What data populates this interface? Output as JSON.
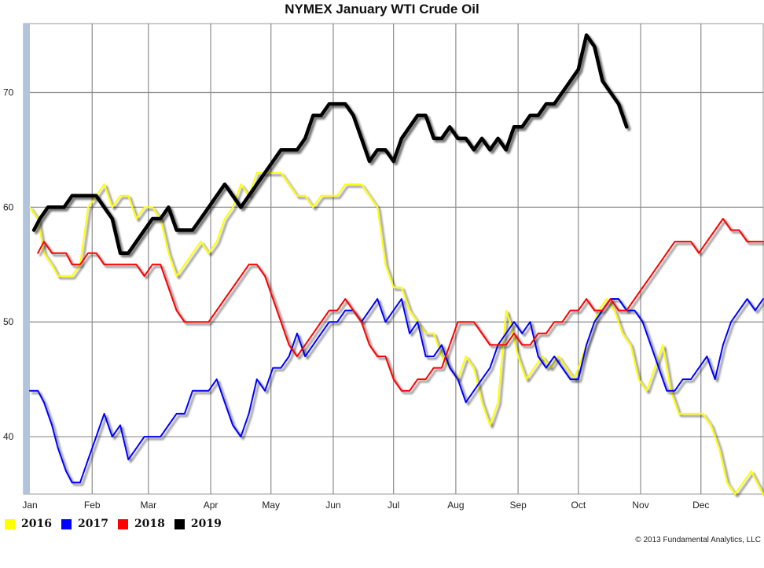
{
  "chart_data": {
    "type": "line",
    "title": "NYMEX January WTI Crude Oil",
    "xlabel": "",
    "ylabel": "",
    "xlim": [
      1,
      366
    ],
    "ylim": [
      35,
      76
    ],
    "yticks": [
      40,
      50,
      60,
      70
    ],
    "x_tick_labels": [
      "Jan",
      "Feb",
      "Mar",
      "Apr",
      "May",
      "Jun",
      "Jul",
      "Aug",
      "Sep",
      "Oct",
      "Nov",
      "Dec"
    ],
    "x_tick_days": [
      1,
      32,
      60,
      91,
      121,
      152,
      182,
      213,
      244,
      274,
      305,
      335
    ],
    "grid": true,
    "legend_position": "bottom-left",
    "series": [
      {
        "name": "2016",
        "color": "#ffff00",
        "x": [
          1,
          5,
          8,
          12,
          15,
          19,
          22,
          26,
          30,
          34,
          38,
          42,
          46,
          50,
          54,
          58,
          62,
          66,
          70,
          74,
          78,
          82,
          86,
          90,
          94,
          98,
          102,
          106,
          110,
          114,
          118,
          122,
          126,
          130,
          134,
          138,
          142,
          146,
          150,
          154,
          158,
          162,
          166,
          170,
          174,
          178,
          182,
          186,
          190,
          194,
          198,
          202,
          206,
          210,
          214,
          218,
          222,
          226,
          230,
          234,
          238,
          240,
          244,
          248,
          252,
          256,
          260,
          264,
          268,
          272,
          276,
          280,
          284,
          288,
          292,
          296,
          300,
          304,
          308,
          312,
          316,
          320,
          324,
          328,
          332,
          336,
          340,
          344,
          348,
          352,
          356,
          360,
          366
        ],
        "y": [
          60,
          59,
          56,
          55,
          54,
          54,
          54,
          55,
          60,
          61,
          62,
          60,
          61,
          61,
          59,
          60,
          60,
          59,
          56,
          54,
          55,
          56,
          57,
          56,
          57,
          59,
          60,
          62,
          61,
          63,
          63,
          63,
          63,
          62,
          61,
          61,
          60,
          61,
          61,
          61,
          62,
          62,
          62,
          61,
          60,
          55,
          53,
          53,
          51,
          50,
          49,
          49,
          47,
          46,
          45,
          47,
          46,
          43,
          41,
          43,
          51,
          50,
          47,
          45,
          46,
          47,
          46,
          47,
          46,
          45,
          47,
          49,
          51,
          52,
          51,
          49,
          48,
          45,
          44,
          46,
          48,
          44,
          42,
          42,
          42,
          42,
          41,
          39,
          36,
          35,
          36,
          37,
          35
        ]
      },
      {
        "name": "2017",
        "color": "#0000ff",
        "x": [
          1,
          5,
          8,
          12,
          15,
          19,
          22,
          26,
          30,
          34,
          38,
          42,
          46,
          50,
          54,
          58,
          62,
          66,
          70,
          74,
          78,
          82,
          86,
          90,
          94,
          98,
          102,
          106,
          110,
          114,
          118,
          122,
          126,
          130,
          134,
          138,
          142,
          146,
          150,
          154,
          158,
          162,
          166,
          170,
          174,
          178,
          182,
          186,
          190,
          194,
          198,
          202,
          206,
          210,
          214,
          218,
          222,
          226,
          230,
          234,
          238,
          242,
          246,
          250,
          254,
          258,
          262,
          266,
          270,
          274,
          278,
          282,
          286,
          290,
          294,
          298,
          302,
          306,
          310,
          314,
          318,
          322,
          326,
          330,
          334,
          338,
          342,
          346,
          350,
          354,
          358,
          362,
          366
        ],
        "y": [
          44,
          44,
          43,
          41,
          39,
          37,
          36,
          36,
          38,
          40,
          42,
          40,
          41,
          38,
          39,
          40,
          40,
          40,
          41,
          42,
          42,
          44,
          44,
          44,
          45,
          43,
          41,
          40,
          42,
          45,
          44,
          46,
          46,
          47,
          49,
          47,
          48,
          49,
          50,
          50,
          51,
          51,
          50,
          51,
          52,
          50,
          51,
          52,
          49,
          50,
          47,
          47,
          48,
          46,
          45,
          43,
          44,
          45,
          46,
          48,
          49,
          50,
          49,
          50,
          47,
          46,
          47,
          46,
          45,
          45,
          48,
          50,
          51,
          52,
          52,
          51,
          51,
          50,
          48,
          46,
          44,
          44,
          45,
          45,
          46,
          47,
          45,
          48,
          50,
          51,
          52,
          51,
          52
        ]
      },
      {
        "name": "2018",
        "color": "#ff0000",
        "x": [
          5,
          8,
          12,
          15,
          19,
          22,
          26,
          30,
          34,
          38,
          42,
          46,
          50,
          54,
          58,
          62,
          66,
          70,
          74,
          78,
          82,
          86,
          90,
          94,
          98,
          102,
          106,
          110,
          114,
          118,
          122,
          126,
          130,
          134,
          138,
          142,
          146,
          150,
          154,
          158,
          162,
          166,
          170,
          174,
          178,
          182,
          186,
          190,
          194,
          198,
          202,
          206,
          210,
          214,
          218,
          222,
          226,
          230,
          234,
          238,
          242,
          246,
          250,
          254,
          258,
          262,
          266,
          270,
          274,
          278,
          282,
          286,
          290,
          294,
          298,
          302,
          306,
          310,
          314,
          318,
          322,
          326,
          330,
          334,
          338,
          342,
          346,
          350,
          354,
          358,
          362,
          366
        ],
        "y": [
          56,
          57,
          56,
          56,
          56,
          55,
          55,
          56,
          56,
          55,
          55,
          55,
          55,
          55,
          54,
          55,
          55,
          53,
          51,
          50,
          50,
          50,
          50,
          51,
          52,
          53,
          54,
          55,
          55,
          54,
          52,
          50,
          48,
          47,
          48,
          49,
          50,
          51,
          51,
          52,
          51,
          50,
          48,
          47,
          47,
          45,
          44,
          44,
          45,
          45,
          46,
          46,
          48,
          50,
          50,
          50,
          49,
          48,
          48,
          48,
          49,
          48,
          48,
          49,
          49,
          50,
          50,
          51,
          51,
          52,
          51,
          51,
          52,
          51,
          51,
          52,
          53,
          54,
          55,
          56,
          57,
          57,
          57,
          56,
          57,
          58,
          59,
          58,
          58,
          57,
          57,
          57
        ]
      },
      {
        "name": "2019",
        "color": "#000000",
        "x": [
          3,
          6,
          10,
          14,
          18,
          22,
          26,
          30,
          34,
          38,
          42,
          46,
          50,
          54,
          58,
          62,
          66,
          70,
          74,
          78,
          82,
          86,
          90,
          94,
          98,
          102,
          106,
          110,
          114,
          118,
          122,
          126,
          130,
          134,
          138,
          142,
          146,
          150,
          154,
          158,
          162,
          166,
          170,
          174,
          178,
          182,
          186,
          190,
          194,
          198,
          202,
          206,
          210,
          214,
          218,
          222,
          226,
          230,
          234,
          238,
          242,
          246,
          250,
          254,
          258,
          262,
          266,
          270,
          274,
          278,
          282,
          286,
          290,
          294,
          298
        ],
        "y": [
          58,
          59,
          60,
          60,
          60,
          61,
          61,
          61,
          61,
          60,
          59,
          56,
          56,
          57,
          58,
          59,
          59,
          60,
          58,
          58,
          58,
          59,
          60,
          61,
          62,
          61,
          60,
          61,
          62,
          63,
          64,
          65,
          65,
          65,
          66,
          68,
          68,
          69,
          69,
          69,
          68,
          66,
          64,
          65,
          65,
          64,
          66,
          67,
          68,
          68,
          66,
          66,
          67,
          66,
          66,
          65,
          66,
          65,
          66,
          65,
          67,
          67,
          68,
          68,
          69,
          69,
          70,
          71,
          72,
          75,
          74,
          71,
          70,
          69,
          67
        ]
      }
    ]
  },
  "copyright": "© 2013 Fundamental Analytics, LLC"
}
